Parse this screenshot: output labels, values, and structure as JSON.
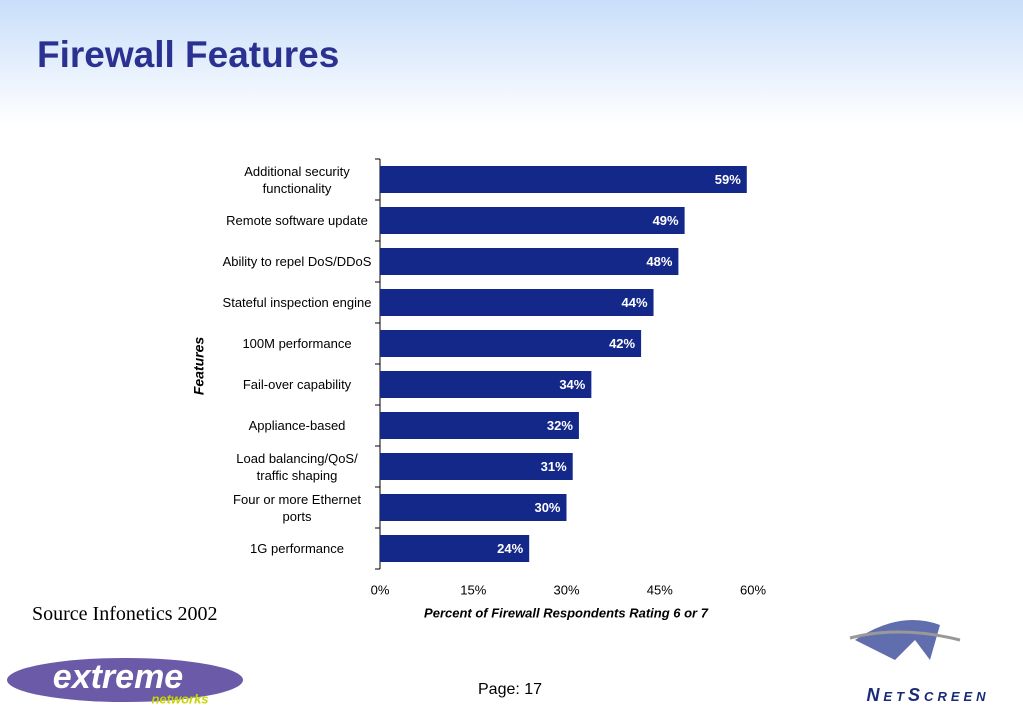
{
  "title": "Firewall Features",
  "source": "Source Infonetics 2002",
  "page": "Page: 17",
  "logos": {
    "left": "extreme",
    "left_sub": "networks",
    "right": "NetScreen"
  },
  "chart_data": {
    "type": "bar",
    "orientation": "horizontal",
    "ylabel": "Features",
    "xlabel": "Percent of Firewall Respondents Rating 6 or 7",
    "categories": [
      "Additional security functionality",
      "Remote software update",
      "Ability to repel DoS/DDoS",
      "Stateful inspection engine",
      "100M performance",
      "Fail-over capability",
      "Appliance-based",
      "Load balancing/QoS/ traffic shaping",
      "Four or more Ethernet ports",
      "1G performance"
    ],
    "values": [
      59,
      49,
      48,
      44,
      42,
      34,
      32,
      31,
      30,
      24
    ],
    "value_labels": [
      "59%",
      "49%",
      "48%",
      "44%",
      "42%",
      "34%",
      "32%",
      "31%",
      "30%",
      "24%"
    ],
    "color": "#14288a",
    "xlim": [
      0,
      60
    ],
    "xticks": [
      {
        "value": 0,
        "label": "0%"
      },
      {
        "value": 15,
        "label": "15%"
      },
      {
        "value": 30,
        "label": "30%"
      },
      {
        "value": 45,
        "label": "45%"
      },
      {
        "value": 60,
        "label": "60%"
      }
    ],
    "grid": false
  }
}
